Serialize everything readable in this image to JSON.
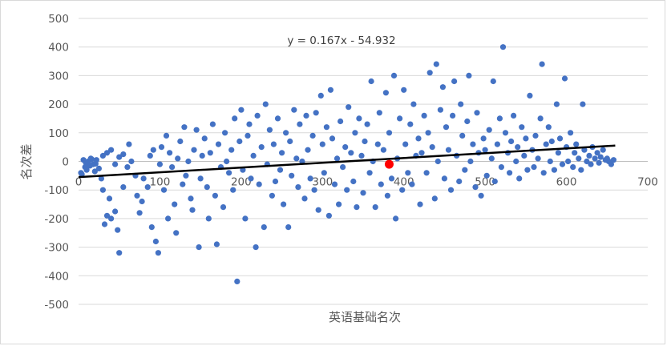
{
  "chart_data": {
    "type": "scatter",
    "title": "",
    "xlabel": "英语基础名次",
    "ylabel": "名次差",
    "xlim": [
      0,
      700
    ],
    "ylim": [
      -500,
      500
    ],
    "x_ticks": [
      "0",
      "100",
      "200",
      "300",
      "400",
      "500",
      "600",
      "700"
    ],
    "y_ticks": [
      "500",
      "400",
      "300",
      "200",
      "100",
      "0",
      "-100",
      "-200",
      "-300",
      "-400",
      "-500"
    ],
    "grid": "horizontal",
    "legend": "none",
    "trendline": {
      "label": "y = 0.167x - 54.932",
      "slope": 0.167,
      "intercept": -54.932,
      "x_range": [
        0,
        660
      ]
    },
    "series": [
      {
        "color": "#4472c4",
        "points": [
          [
            3,
            -40
          ],
          [
            6,
            5
          ],
          [
            8,
            -20
          ],
          [
            10,
            -30
          ],
          [
            12,
            0
          ],
          [
            15,
            10
          ],
          [
            18,
            -10
          ],
          [
            20,
            -35
          ],
          [
            22,
            5
          ],
          [
            25,
            -25
          ],
          [
            4,
            -45
          ],
          [
            9,
            -5
          ],
          [
            14,
            -15
          ],
          [
            16,
            8
          ],
          [
            21,
            -8
          ],
          [
            28,
            -60
          ],
          [
            30,
            -100
          ],
          [
            32,
            -220
          ],
          [
            35,
            -190
          ],
          [
            38,
            -130
          ],
          [
            40,
            -200
          ],
          [
            45,
            -175
          ],
          [
            48,
            -240
          ],
          [
            50,
            -320
          ],
          [
            55,
            -90
          ],
          [
            30,
            20
          ],
          [
            35,
            30
          ],
          [
            40,
            40
          ],
          [
            45,
            -10
          ],
          [
            50,
            15
          ],
          [
            55,
            25
          ],
          [
            60,
            -20
          ],
          [
            62,
            60
          ],
          [
            65,
            0
          ],
          [
            70,
            -50
          ],
          [
            72,
            -120
          ],
          [
            75,
            -180
          ],
          [
            78,
            -140
          ],
          [
            80,
            -60
          ],
          [
            85,
            -90
          ],
          [
            88,
            20
          ],
          [
            90,
            -230
          ],
          [
            92,
            40
          ],
          [
            95,
            -280
          ],
          [
            98,
            -320
          ],
          [
            100,
            -10
          ],
          [
            102,
            50
          ],
          [
            105,
            -100
          ],
          [
            108,
            90
          ],
          [
            110,
            -200
          ],
          [
            112,
            30
          ],
          [
            115,
            -20
          ],
          [
            118,
            -150
          ],
          [
            120,
            -250
          ],
          [
            122,
            10
          ],
          [
            125,
            70
          ],
          [
            128,
            -80
          ],
          [
            130,
            120
          ],
          [
            132,
            -50
          ],
          [
            135,
            0
          ],
          [
            138,
            -130
          ],
          [
            140,
            -170
          ],
          [
            142,
            40
          ],
          [
            145,
            110
          ],
          [
            148,
            -300
          ],
          [
            150,
            -60
          ],
          [
            152,
            20
          ],
          [
            155,
            80
          ],
          [
            158,
            -90
          ],
          [
            160,
            -200
          ],
          [
            162,
            30
          ],
          [
            165,
            130
          ],
          [
            168,
            -120
          ],
          [
            170,
            -290
          ],
          [
            172,
            60
          ],
          [
            175,
            -20
          ],
          [
            178,
            -160
          ],
          [
            180,
            100
          ],
          [
            182,
            0
          ],
          [
            185,
            -40
          ],
          [
            188,
            40
          ],
          [
            190,
            -100
          ],
          [
            192,
            150
          ],
          [
            195,
            -420
          ],
          [
            198,
            70
          ],
          [
            200,
            180
          ],
          [
            202,
            -30
          ],
          [
            205,
            -200
          ],
          [
            208,
            90
          ],
          [
            210,
            130
          ],
          [
            212,
            -60
          ],
          [
            215,
            20
          ],
          [
            218,
            -300
          ],
          [
            220,
            160
          ],
          [
            222,
            -80
          ],
          [
            225,
            50
          ],
          [
            228,
            -230
          ],
          [
            230,
            200
          ],
          [
            232,
            -10
          ],
          [
            235,
            110
          ],
          [
            238,
            -120
          ],
          [
            240,
            60
          ],
          [
            242,
            -70
          ],
          [
            245,
            150
          ],
          [
            248,
            -30
          ],
          [
            250,
            30
          ],
          [
            252,
            -150
          ],
          [
            255,
            100
          ],
          [
            258,
            -230
          ],
          [
            260,
            70
          ],
          [
            262,
            -50
          ],
          [
            265,
            180
          ],
          [
            268,
            10
          ],
          [
            270,
            -90
          ],
          [
            272,
            130
          ],
          [
            275,
            0
          ],
          [
            278,
            -130
          ],
          [
            280,
            160
          ],
          [
            282,
            40
          ],
          [
            285,
            -60
          ],
          [
            288,
            90
          ],
          [
            290,
            -100
          ],
          [
            292,
            170
          ],
          [
            295,
            -170
          ],
          [
            298,
            230
          ],
          [
            300,
            60
          ],
          [
            302,
            -40
          ],
          [
            305,
            120
          ],
          [
            308,
            -190
          ],
          [
            310,
            250
          ],
          [
            312,
            80
          ],
          [
            315,
            -80
          ],
          [
            318,
            10
          ],
          [
            320,
            -150
          ],
          [
            322,
            140
          ],
          [
            325,
            -20
          ],
          [
            328,
            50
          ],
          [
            330,
            -100
          ],
          [
            332,
            190
          ],
          [
            335,
            30
          ],
          [
            338,
            -70
          ],
          [
            340,
            100
          ],
          [
            342,
            -160
          ],
          [
            345,
            150
          ],
          [
            348,
            20
          ],
          [
            350,
            -110
          ],
          [
            352,
            70
          ],
          [
            355,
            130
          ],
          [
            358,
            -40
          ],
          [
            360,
            280
          ],
          [
            362,
            0
          ],
          [
            365,
            -160
          ],
          [
            368,
            60
          ],
          [
            370,
            170
          ],
          [
            372,
            -80
          ],
          [
            375,
            40
          ],
          [
            378,
            240
          ],
          [
            380,
            -120
          ],
          [
            382,
            100
          ],
          [
            385,
            -60
          ],
          [
            388,
            300
          ],
          [
            390,
            -200
          ],
          [
            392,
            10
          ],
          [
            395,
            150
          ],
          [
            398,
            -100
          ],
          [
            400,
            250
          ],
          [
            402,
            60
          ],
          [
            405,
            -40
          ],
          [
            408,
            130
          ],
          [
            410,
            -80
          ],
          [
            412,
            200
          ],
          [
            415,
            20
          ],
          [
            418,
            80
          ],
          [
            420,
            -150
          ],
          [
            422,
            30
          ],
          [
            425,
            160
          ],
          [
            428,
            -40
          ],
          [
            430,
            100
          ],
          [
            432,
            310
          ],
          [
            435,
            50
          ],
          [
            438,
            -130
          ],
          [
            440,
            340
          ],
          [
            442,
            0
          ],
          [
            445,
            180
          ],
          [
            448,
            260
          ],
          [
            450,
            -60
          ],
          [
            452,
            120
          ],
          [
            455,
            40
          ],
          [
            458,
            -100
          ],
          [
            460,
            160
          ],
          [
            462,
            280
          ],
          [
            465,
            20
          ],
          [
            468,
            -70
          ],
          [
            470,
            200
          ],
          [
            472,
            90
          ],
          [
            475,
            -30
          ],
          [
            478,
            140
          ],
          [
            480,
            300
          ],
          [
            482,
            0
          ],
          [
            485,
            60
          ],
          [
            488,
            -90
          ],
          [
            490,
            170
          ],
          [
            492,
            30
          ],
          [
            495,
            -120
          ],
          [
            498,
            80
          ],
          [
            500,
            40
          ],
          [
            502,
            -50
          ],
          [
            505,
            110
          ],
          [
            508,
            10
          ],
          [
            510,
            280
          ],
          [
            512,
            -70
          ],
          [
            515,
            60
          ],
          [
            518,
            150
          ],
          [
            520,
            -20
          ],
          [
            522,
            400
          ],
          [
            525,
            100
          ],
          [
            528,
            30
          ],
          [
            530,
            -40
          ],
          [
            532,
            70
          ],
          [
            535,
            160
          ],
          [
            538,
            0
          ],
          [
            540,
            50
          ],
          [
            542,
            -60
          ],
          [
            545,
            120
          ],
          [
            548,
            20
          ],
          [
            550,
            80
          ],
          [
            552,
            -30
          ],
          [
            555,
            230
          ],
          [
            558,
            40
          ],
          [
            560,
            -20
          ],
          [
            562,
            90
          ],
          [
            565,
            10
          ],
          [
            568,
            150
          ],
          [
            570,
            340
          ],
          [
            572,
            -40
          ],
          [
            575,
            60
          ],
          [
            578,
            120
          ],
          [
            580,
            0
          ],
          [
            582,
            70
          ],
          [
            585,
            -30
          ],
          [
            588,
            200
          ],
          [
            590,
            30
          ],
          [
            592,
            80
          ],
          [
            595,
            -10
          ],
          [
            598,
            290
          ],
          [
            600,
            50
          ],
          [
            602,
            0
          ],
          [
            605,
            100
          ],
          [
            608,
            -20
          ],
          [
            610,
            30
          ],
          [
            612,
            60
          ],
          [
            615,
            10
          ],
          [
            618,
            -30
          ],
          [
            620,
            200
          ],
          [
            622,
            40
          ],
          [
            625,
            0
          ],
          [
            628,
            20
          ],
          [
            630,
            -10
          ],
          [
            632,
            50
          ],
          [
            635,
            10
          ],
          [
            638,
            30
          ],
          [
            640,
            -5
          ],
          [
            642,
            15
          ],
          [
            645,
            40
          ],
          [
            648,
            5
          ],
          [
            650,
            10
          ],
          [
            652,
            0
          ],
          [
            655,
            -10
          ],
          [
            658,
            5
          ]
        ]
      }
    ],
    "highlight_points": [
      {
        "x": 382,
        "y": -10,
        "color": "#ff0000"
      }
    ]
  }
}
